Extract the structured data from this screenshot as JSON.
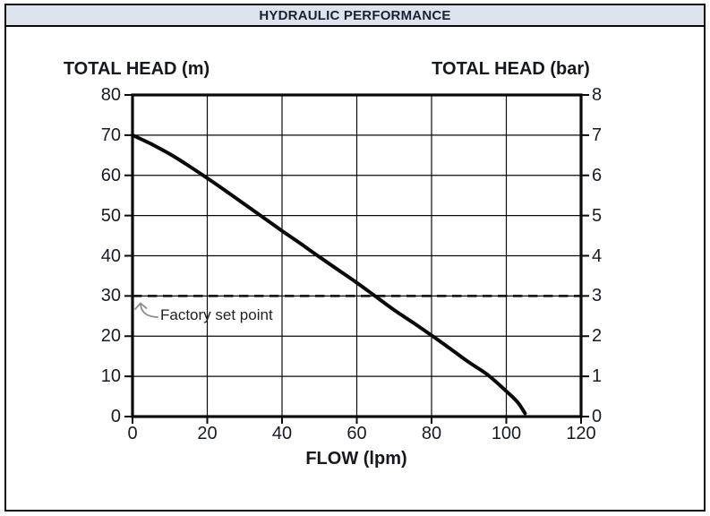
{
  "panel": {
    "header_title": "HYDRAULIC PERFORMANCE"
  },
  "chart_data": {
    "type": "line",
    "title": "HYDRAULIC PERFORMANCE",
    "xlabel": "FLOW (lpm)",
    "ylabel_left": "TOTAL HEAD (m)",
    "ylabel_right": "TOTAL HEAD (bar)",
    "xlim": [
      0,
      120
    ],
    "ylim_left": [
      0,
      80
    ],
    "ylim_right": [
      0,
      8
    ],
    "x_ticks": [
      0,
      20,
      40,
      60,
      80,
      100,
      120
    ],
    "y_ticks_left": [
      80,
      70,
      60,
      50,
      40,
      30,
      20,
      10,
      0
    ],
    "y_ticks_right": [
      8,
      7,
      6,
      5,
      4,
      3,
      2,
      1,
      0
    ],
    "grid": true,
    "legend": "none",
    "colors": {
      "curve": "#0a0a0a",
      "grid": "#0a0a0a",
      "dashed_line": "#0a0a0a",
      "arrow": "#8c8c8c",
      "header_bg": "#dde4ee"
    },
    "series": [
      {
        "name": "pump curve",
        "style": "solid",
        "points": [
          [
            0,
            70
          ],
          [
            5,
            67.8
          ],
          [
            10,
            65.3
          ],
          [
            15,
            62.4
          ],
          [
            20,
            59.3
          ],
          [
            25,
            56.1
          ],
          [
            30,
            52.8
          ],
          [
            35,
            49.5
          ],
          [
            40,
            46.2
          ],
          [
            45,
            43.0
          ],
          [
            50,
            39.7
          ],
          [
            55,
            36.5
          ],
          [
            60,
            33.3
          ],
          [
            65,
            29.9
          ],
          [
            70,
            26.5
          ],
          [
            75,
            23.4
          ],
          [
            80,
            20.2
          ],
          [
            85,
            16.9
          ],
          [
            90,
            13.5
          ],
          [
            95,
            10.4
          ],
          [
            100,
            6.3
          ],
          [
            103,
            3.6
          ],
          [
            105,
            0.8
          ]
        ]
      },
      {
        "name": "factory set point line",
        "style": "dashed",
        "y": 30,
        "label": "Factory set point"
      }
    ]
  }
}
